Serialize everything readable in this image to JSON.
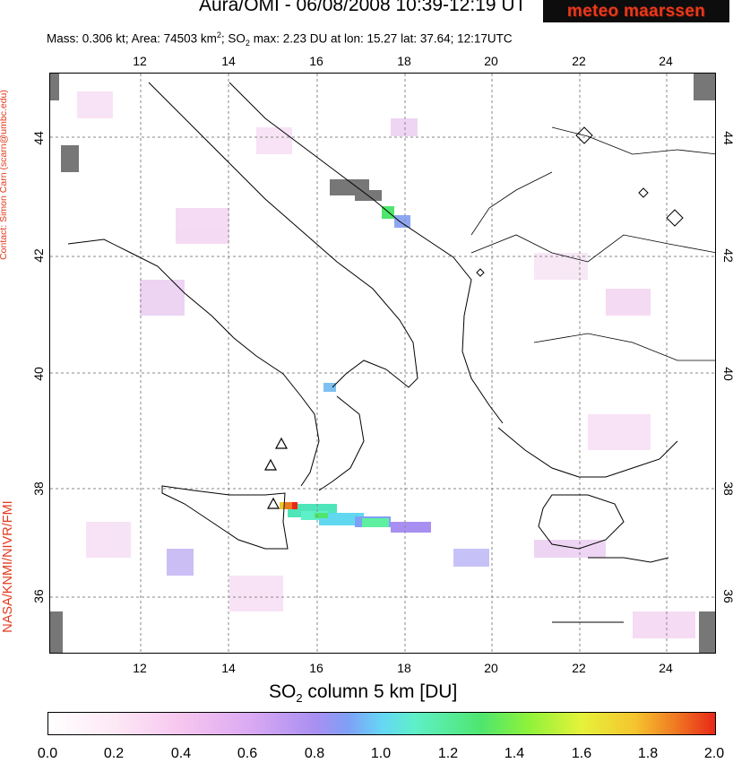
{
  "header": {
    "title": "Aura/OMI - 06/08/2008 10:39-12:19 UT",
    "logo_text": "meteo maarssen"
  },
  "subtitle": {
    "mass_label": "Mass: ",
    "mass": "0.306 kt",
    "area_label": "; Area: ",
    "area": "74503 km",
    "area_sup": "2",
    "so2_label": "; SO",
    "so2_sub": "2",
    "so2_max_label": " max: ",
    "so2_max": "2.23 DU",
    "lon_label": " at lon: ",
    "lon": "15.27",
    "lat_label": " lat: ",
    "lat": "37.64",
    "time": "; 12:17UTC"
  },
  "side": {
    "contact": "Contact: Simon Carn (scarn@umbc.edu)",
    "credit": "NASA/KNMI/NIVR/FMI"
  },
  "axes": {
    "lon_ticks": [
      "12",
      "14",
      "16",
      "18",
      "20",
      "22",
      "24"
    ],
    "lat_ticks": [
      "44",
      "42",
      "40",
      "38",
      "36"
    ]
  },
  "colorbar": {
    "title_pre": "SO",
    "title_sub": "2",
    "title_post": " column 5 km [DU]",
    "ticks": [
      "0.0",
      "0.2",
      "0.4",
      "0.6",
      "0.8",
      "1.0",
      "1.2",
      "1.4",
      "1.6",
      "1.8",
      "2.0"
    ],
    "colors": [
      "#ffffff",
      "#fde8f6",
      "#f6c6ef",
      "#dcaaf2",
      "#a98ff2",
      "#66d6f6",
      "#4fe66e",
      "#e6f23a",
      "#f07a22",
      "#e82818"
    ]
  },
  "map": {
    "lon_range": [
      10,
      25
    ],
    "lat_range": [
      35,
      45
    ],
    "volcano_markers": [
      {
        "name": "Etna",
        "lon": 15.0,
        "lat": 37.73
      },
      {
        "name": "Stromboli",
        "lon": 15.2,
        "lat": 38.79
      },
      {
        "name": "Vulcano",
        "lon": 14.96,
        "lat": 38.4
      }
    ]
  }
}
